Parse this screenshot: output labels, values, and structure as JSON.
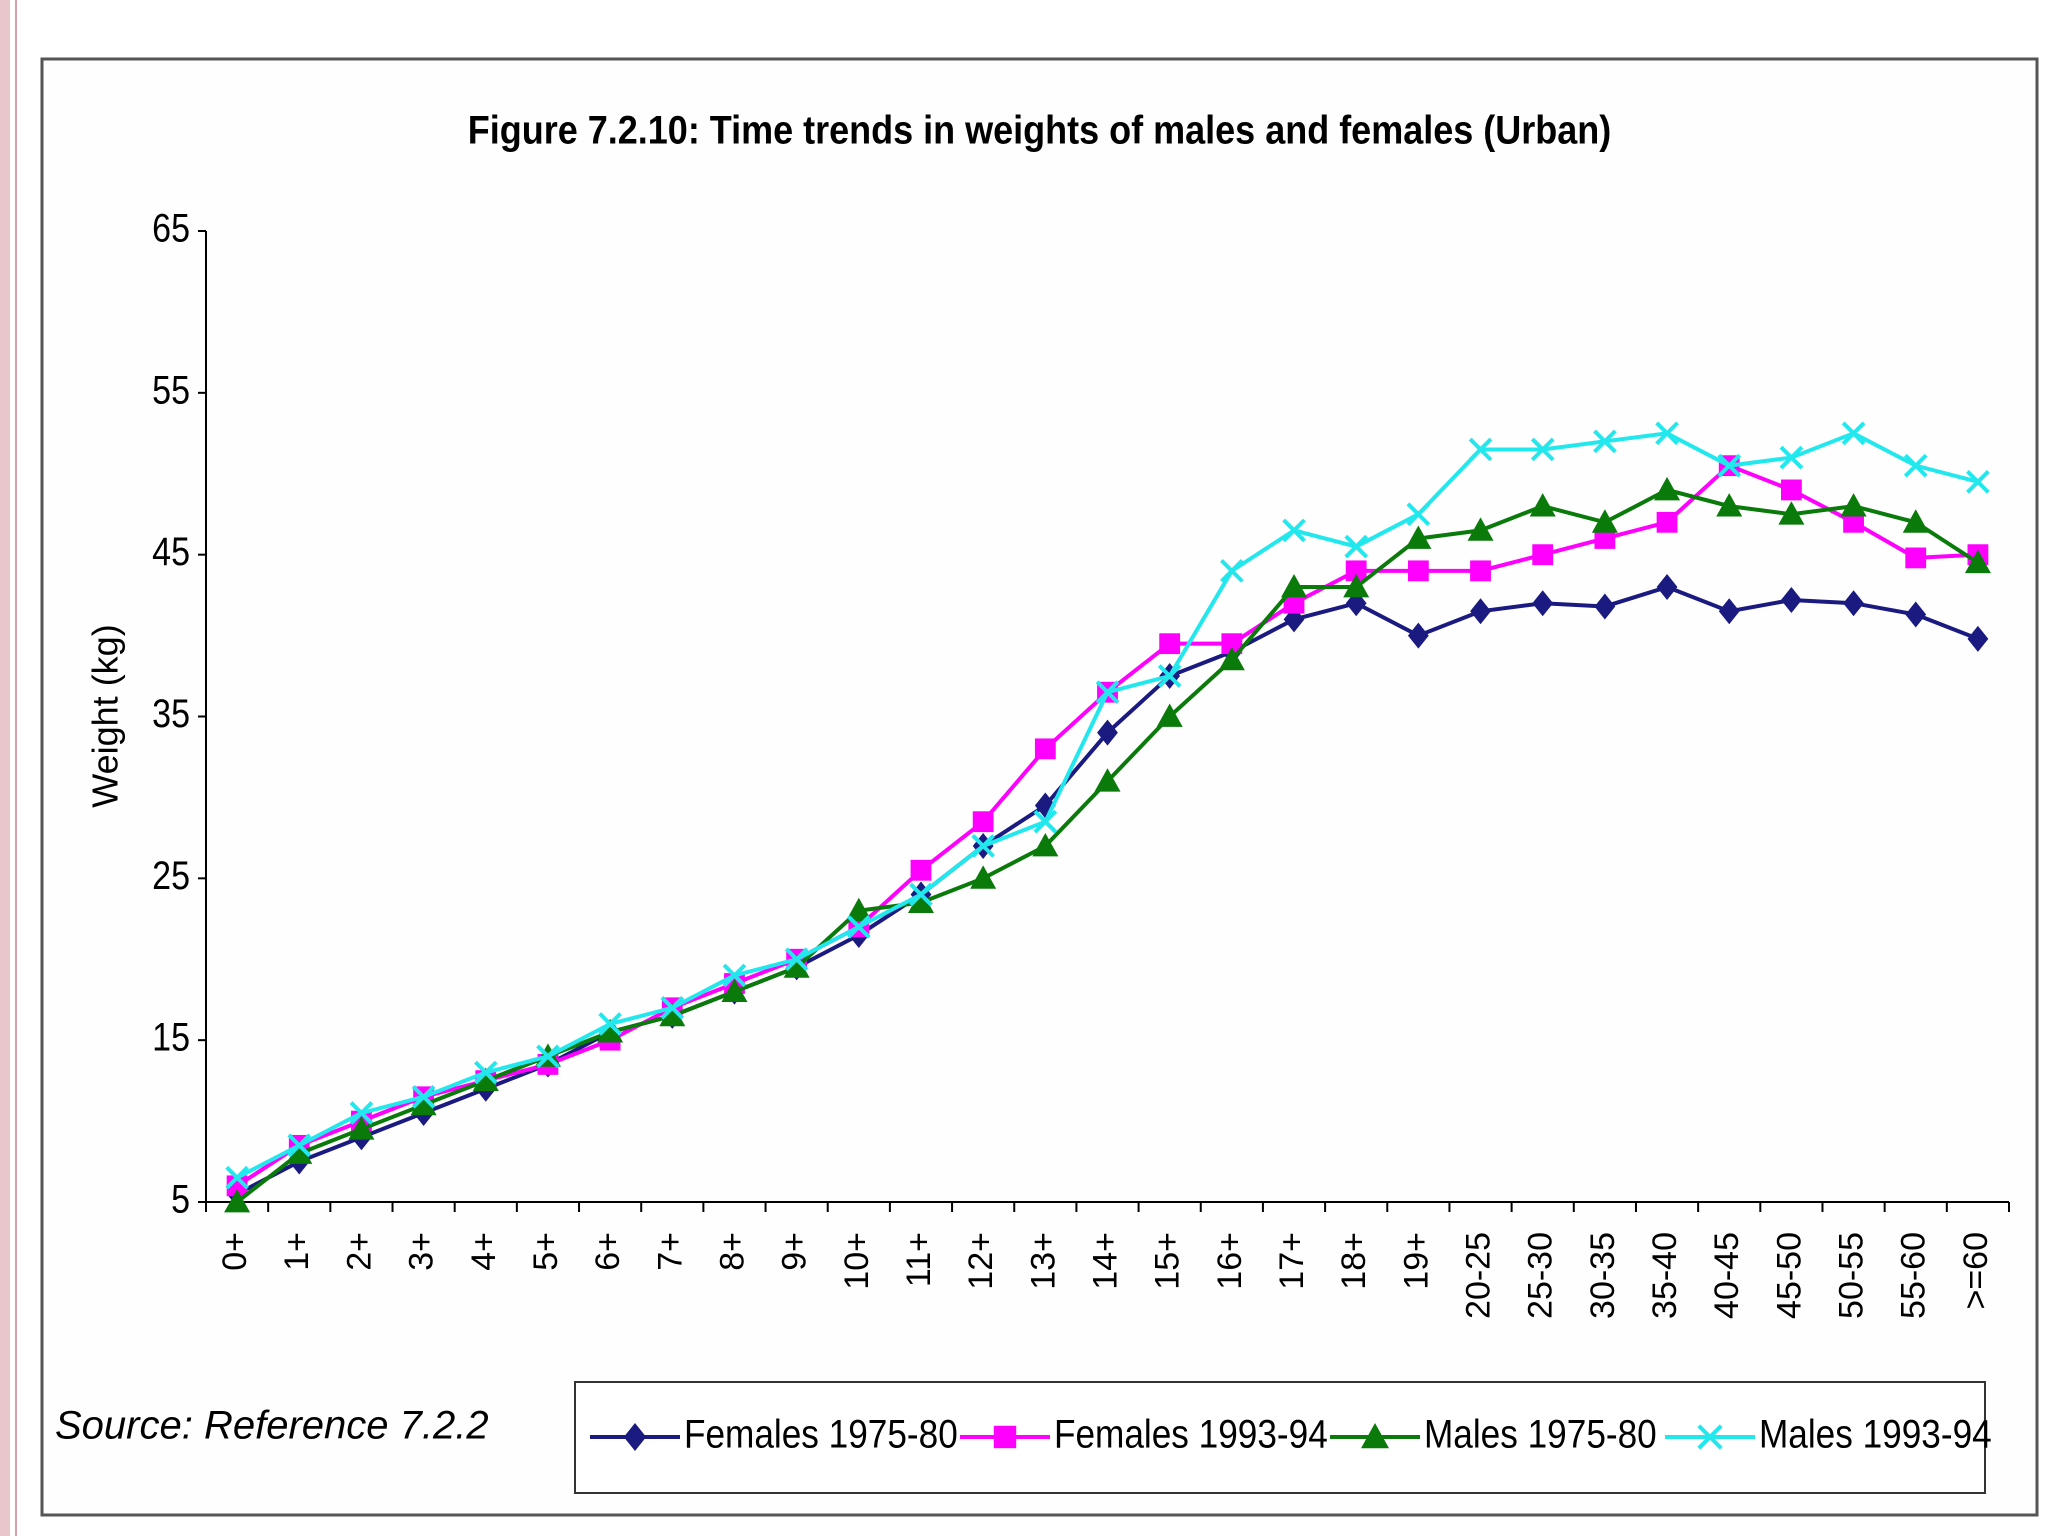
{
  "chart_data": {
    "type": "line",
    "title": "Figure 7.2.10: Time trends in weights of males and females (Urban)",
    "y_label": "Weight (kg)",
    "source": "Source: Reference 7.2.2",
    "categories": [
      "0+",
      "1+",
      "2+",
      "3+",
      "4+",
      "5+",
      "6+",
      "7+",
      "8+",
      "9+",
      "10+",
      "11+",
      "12+",
      "13+",
      "14+",
      "15+",
      "16+",
      "17+",
      "18+",
      "19+",
      "20-25",
      "25-30",
      "30-35",
      "35-40",
      "40-45",
      "45-50",
      "50-55",
      "55-60",
      ">=60"
    ],
    "ylim": [
      5,
      65
    ],
    "yticks": [
      5,
      15,
      25,
      35,
      45,
      55,
      65
    ],
    "series": [
      {
        "name": "Females 1975-80",
        "color": "#1a1a80",
        "marker": "diamond",
        "values": [
          5.5,
          7.5,
          9,
          10.5,
          12,
          13.5,
          15.5,
          16.5,
          18,
          19.5,
          21.5,
          24,
          27,
          29.5,
          34,
          37.5,
          39,
          41,
          42,
          40,
          41.5,
          42,
          41.8,
          43,
          41.5,
          42.2,
          42,
          41.3,
          39.8
        ]
      },
      {
        "name": "Females 1993-94",
        "color": "#ff00ff",
        "marker": "square",
        "values": [
          6,
          8.5,
          10,
          11.5,
          12.5,
          13.5,
          15,
          17,
          18.5,
          20,
          22,
          25.5,
          28.5,
          33,
          36.5,
          39.5,
          39.5,
          42,
          44,
          44,
          44,
          45,
          46,
          47,
          50.5,
          49,
          47,
          44.8,
          45
        ]
      },
      {
        "name": "Males 1975-80",
        "color": "#0a7a0a",
        "marker": "triangle",
        "values": [
          5,
          8,
          9.5,
          11,
          12.5,
          14,
          15.5,
          16.5,
          18,
          19.5,
          23,
          23.5,
          25,
          27,
          31,
          35,
          38.5,
          43,
          43,
          46,
          46.5,
          48,
          47,
          49,
          48,
          47.5,
          48,
          47,
          44.5
        ]
      },
      {
        "name": "Males 1993-94",
        "color": "#22e8ee",
        "marker": "x",
        "values": [
          6.5,
          8.5,
          10.5,
          11.5,
          13,
          14,
          16,
          17,
          19,
          20,
          22,
          24,
          27,
          28.5,
          36.5,
          37.5,
          44,
          46.5,
          45.5,
          47.5,
          51.5,
          51.5,
          52,
          52.5,
          50.5,
          51,
          52.5,
          50.5,
          49.5
        ]
      }
    ]
  }
}
